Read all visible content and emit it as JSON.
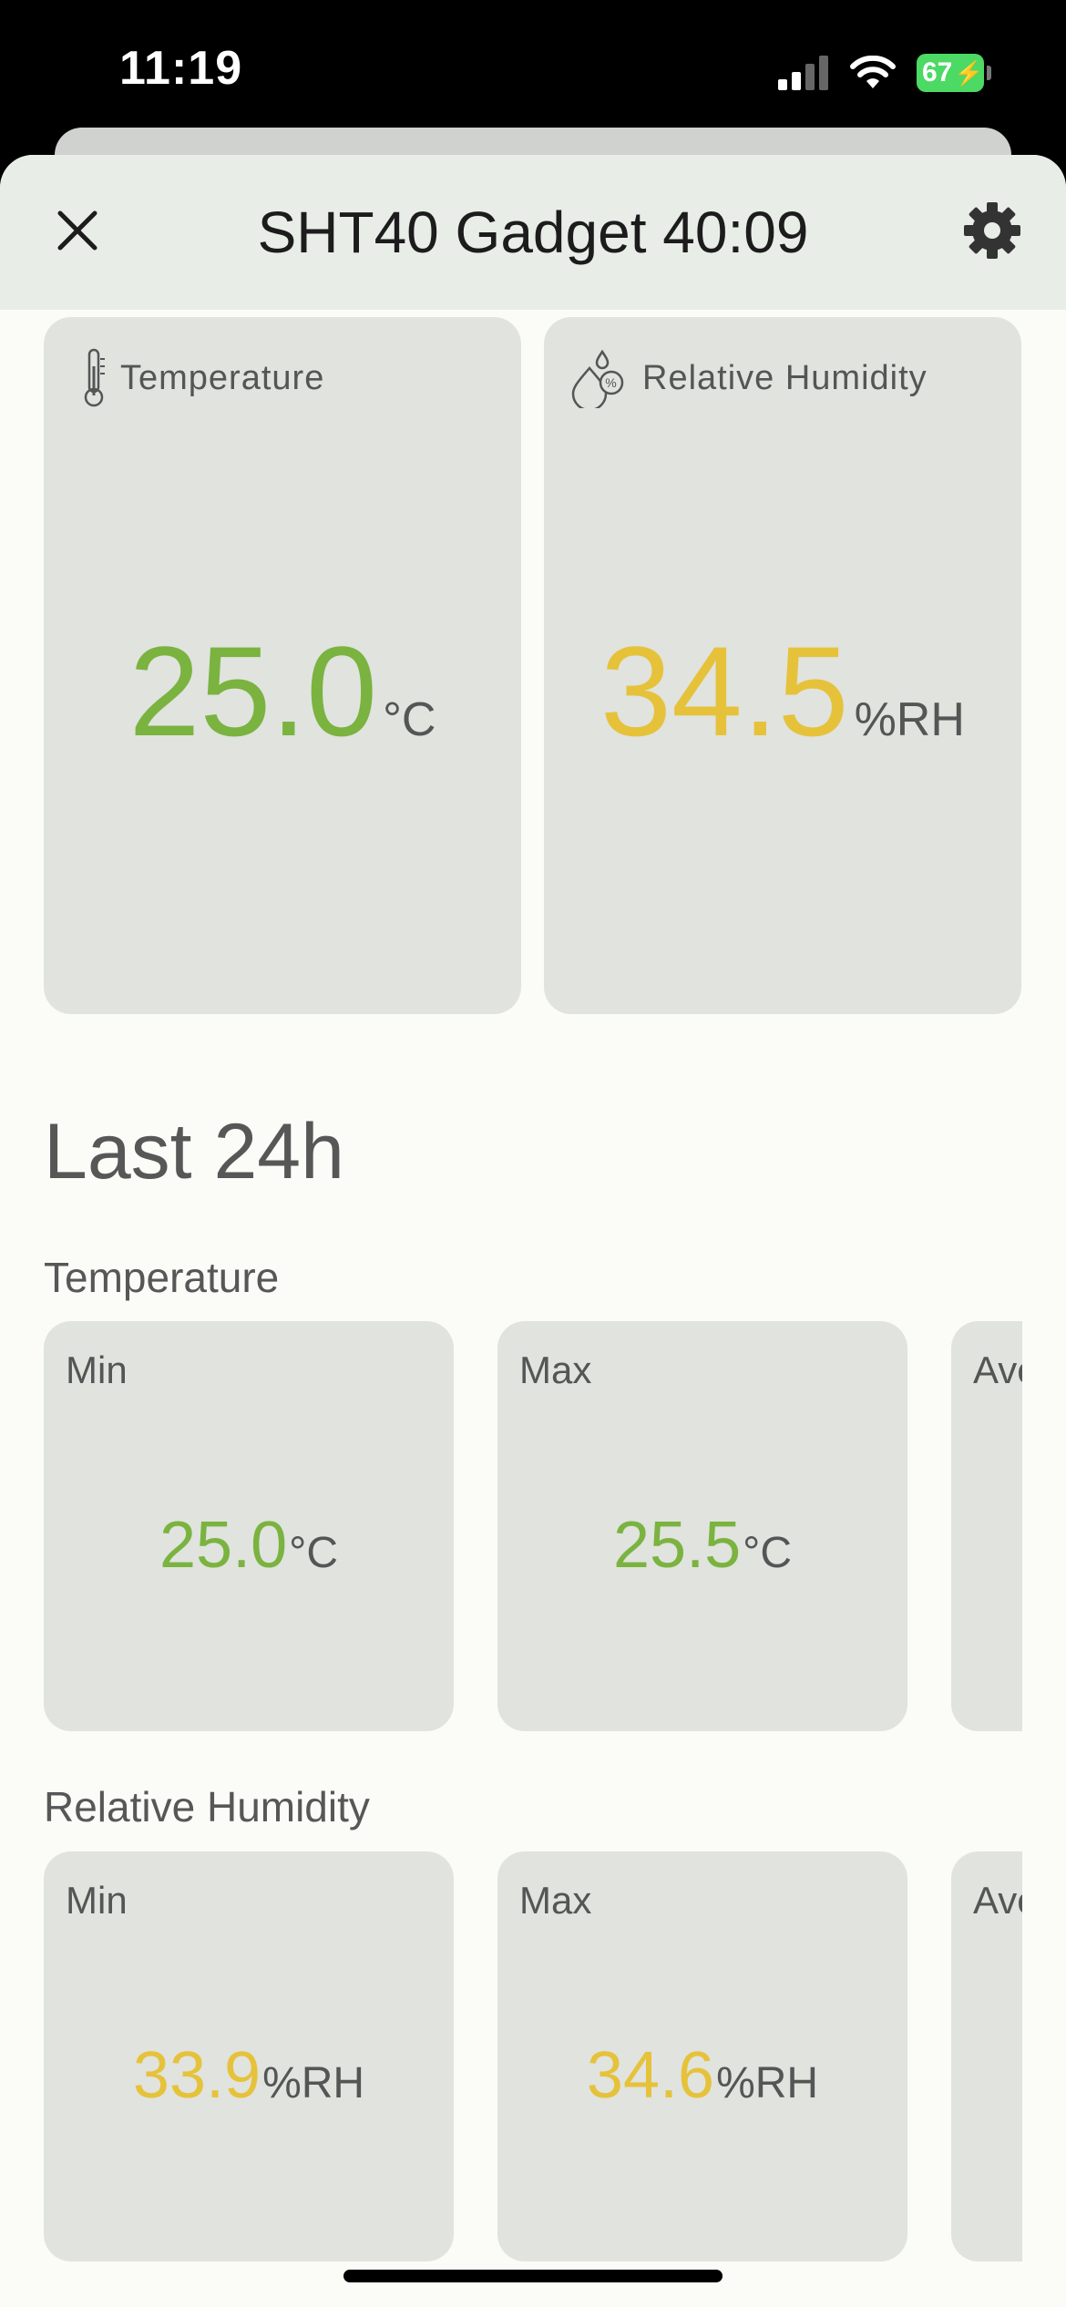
{
  "status": {
    "time": "11:19",
    "battery": "67"
  },
  "header": {
    "title": "SHT40 Gadget 40:09",
    "close_icon": "close-icon",
    "settings_icon": "gear-icon"
  },
  "current": {
    "temperature": {
      "label": "Temperature",
      "value": "25.0",
      "unit": "°C",
      "color": "#7ab33f"
    },
    "humidity": {
      "label": "Relative Humidity",
      "value": "34.5",
      "unit": "%RH",
      "color": "#e6c23a"
    }
  },
  "last24h": {
    "title": "Last 24h",
    "temperature": {
      "title": "Temperature",
      "min": {
        "label": "Min",
        "value": "25.0",
        "unit": "°C"
      },
      "max": {
        "label": "Max",
        "value": "25.5",
        "unit": "°C"
      },
      "avg": {
        "label": "Ave"
      }
    },
    "humidity": {
      "title": "Relative Humidity",
      "min": {
        "label": "Min",
        "value": "33.9",
        "unit": "%RH"
      },
      "max": {
        "label": "Max",
        "value": "34.6",
        "unit": "%RH"
      },
      "avg": {
        "label": "Ave"
      }
    }
  }
}
